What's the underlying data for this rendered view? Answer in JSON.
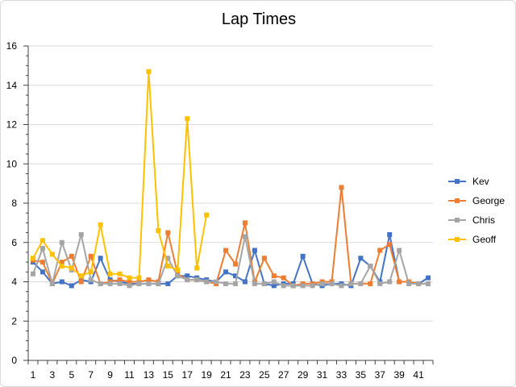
{
  "chart_data": {
    "type": "line",
    "title": "Lap Times",
    "xlabel": "",
    "ylabel": "",
    "ylim": [
      0,
      16
    ],
    "ytick_step": 2,
    "grid": "horizontal",
    "legend_position": "right",
    "x": [
      1,
      2,
      3,
      4,
      5,
      6,
      7,
      8,
      9,
      10,
      11,
      12,
      13,
      14,
      15,
      16,
      17,
      18,
      19,
      20,
      21,
      22,
      23,
      24,
      25,
      26,
      27,
      28,
      29,
      30,
      31,
      32,
      33,
      34,
      35,
      36,
      37,
      38,
      39,
      40,
      41,
      42
    ],
    "x_tick_labels": [
      "1",
      "3",
      "5",
      "7",
      "9",
      "11",
      "13",
      "15",
      "17",
      "19",
      "21",
      "23",
      "25",
      "27",
      "29",
      "31",
      "33",
      "35",
      "37",
      "39",
      "41"
    ],
    "series": [
      {
        "name": "Kev",
        "color": "#4472c4",
        "values": [
          5.0,
          4.5,
          3.9,
          4.0,
          3.8,
          4.1,
          4.0,
          5.2,
          4.1,
          4.0,
          3.9,
          3.9,
          3.9,
          3.9,
          3.9,
          4.3,
          4.3,
          4.2,
          4.1,
          4.0,
          4.5,
          4.3,
          4.0,
          5.6,
          3.9,
          3.8,
          3.9,
          3.9,
          5.3,
          3.9,
          3.8,
          3.9,
          3.9,
          3.8,
          5.2,
          4.8,
          4.0,
          6.4,
          4.0,
          4.0,
          3.9,
          4.2
        ]
      },
      {
        "name": "George",
        "color": "#ed7d31",
        "values": [
          5.1,
          5.0,
          3.9,
          5.0,
          5.3,
          4.0,
          5.3,
          3.9,
          4.0,
          4.1,
          4.0,
          4.0,
          4.1,
          4.0,
          6.5,
          4.4,
          4.1,
          4.1,
          4.0,
          3.9,
          5.6,
          4.9,
          7.0,
          4.0,
          5.2,
          4.3,
          4.2,
          3.8,
          3.9,
          3.9,
          4.0,
          4.0,
          8.8,
          3.9,
          3.9,
          3.9,
          5.6,
          5.9,
          4.0,
          4.0,
          3.9,
          3.9
        ]
      },
      {
        "name": "Chris",
        "color": "#a5a5a5",
        "values": [
          4.4,
          5.7,
          3.9,
          6.0,
          4.6,
          6.4,
          4.1,
          3.9,
          3.9,
          3.9,
          3.8,
          3.9,
          3.9,
          3.9,
          5.2,
          4.3,
          4.1,
          4.1,
          4.0,
          4.0,
          3.9,
          3.9,
          6.3,
          3.9,
          3.9,
          4.0,
          3.8,
          3.8,
          3.8,
          3.8,
          3.9,
          3.9,
          3.8,
          3.9,
          3.9,
          4.8,
          3.9,
          4.0,
          5.6,
          3.9,
          3.9,
          3.9
        ]
      },
      {
        "name": "Geoff",
        "color": "#ffc000",
        "values": [
          5.2,
          6.1,
          5.4,
          4.8,
          4.7,
          4.3,
          4.5,
          6.9,
          4.4,
          4.4,
          4.2,
          4.2,
          14.7,
          6.6,
          4.8,
          4.6,
          12.3,
          4.7,
          7.4,
          null,
          null,
          null,
          null,
          null,
          null,
          null,
          null,
          null,
          null,
          null,
          null,
          null,
          null,
          null,
          null,
          null,
          null,
          null,
          null,
          null,
          null,
          null
        ]
      }
    ]
  }
}
